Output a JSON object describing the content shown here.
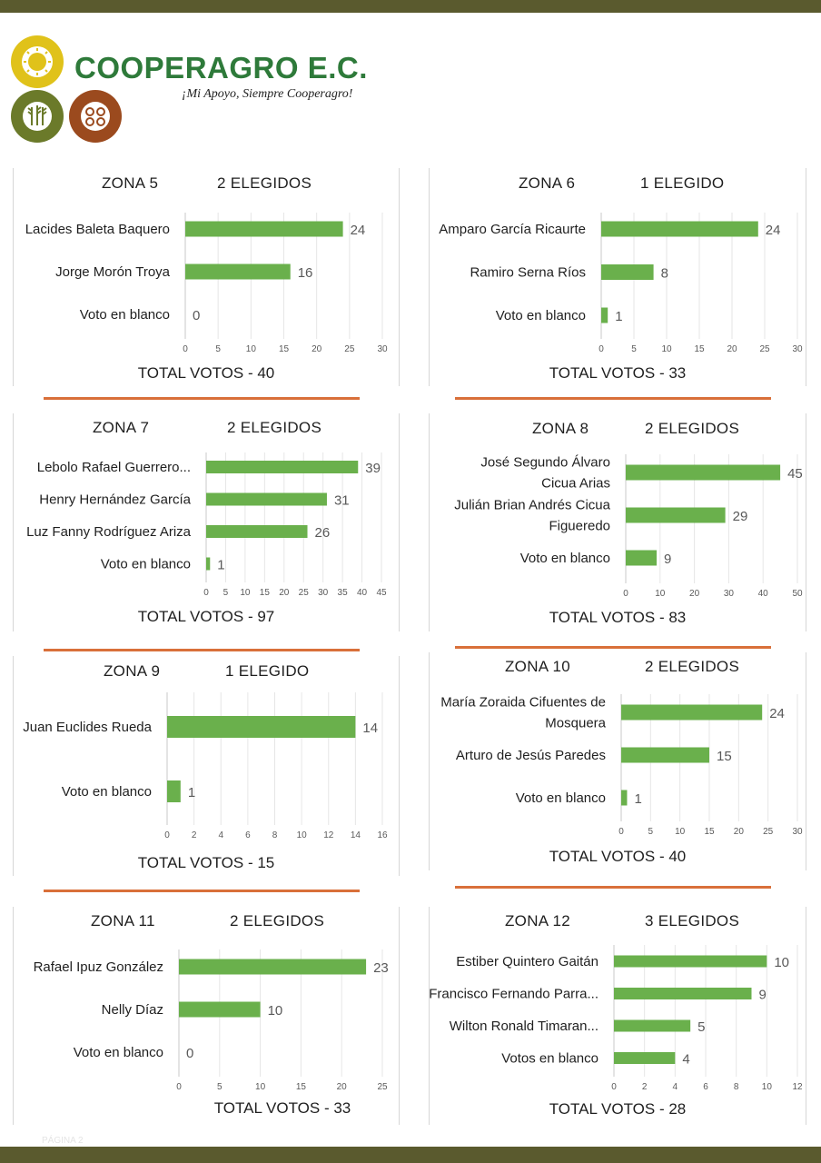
{
  "header": {
    "brand": "COOPERAGRO E.C.",
    "slogan": "¡Mi Apoyo, Siempre Cooperagro!",
    "colors": {
      "band": "#5a5a2e",
      "brand_green": "#2e7a3a",
      "logo_yellow": "#e0c21a",
      "logo_olive": "#6b7a2a",
      "logo_brown": "#9b4a1e",
      "bar_green": "#6ab04c",
      "divider_orange": "#d9703a"
    }
  },
  "zones": [
    {
      "zona": "ZONA 5",
      "elegidos": "2 ELEGIDOS",
      "total": "TOTAL VOTOS - 40"
    },
    {
      "zona": "ZONA 6",
      "elegidos": "1 ELEGIDO",
      "total": "TOTAL VOTOS - 33"
    },
    {
      "zona": "ZONA 7",
      "elegidos": "2 ELEGIDOS",
      "total": "TOTAL VOTOS - 97"
    },
    {
      "zona": "ZONA 8",
      "elegidos": "2 ELEGIDOS",
      "total": "TOTAL VOTOS - 83"
    },
    {
      "zona": "ZONA 9",
      "elegidos": "1 ELEGIDO",
      "total": "TOTAL VOTOS - 15"
    },
    {
      "zona": "ZONA 10",
      "elegidos": "2 ELEGIDOS",
      "total": "TOTAL VOTOS - 40"
    },
    {
      "zona": "ZONA 11",
      "elegidos": "2 ELEGIDOS",
      "total": "TOTAL VOTOS - 33"
    },
    {
      "zona": "ZONA 12",
      "elegidos": "3 ELEGIDOS",
      "total": "TOTAL VOTOS - 28"
    }
  ],
  "chart_data": [
    {
      "type": "bar",
      "orientation": "horizontal",
      "categories": [
        "Lacides Baleta Baquero",
        "Jorge Morón Troya",
        "Voto en blanco"
      ],
      "values": [
        24,
        16,
        0
      ],
      "xlim": [
        0,
        30
      ],
      "xticks": [
        0,
        5,
        10,
        15,
        20,
        25,
        30
      ],
      "grid": true
    },
    {
      "type": "bar",
      "orientation": "horizontal",
      "categories": [
        "Amparo García Ricaurte",
        "Ramiro Serna Ríos",
        "Voto en blanco"
      ],
      "values": [
        24,
        8,
        1
      ],
      "xlim": [
        0,
        30
      ],
      "xticks": [
        0,
        5,
        10,
        15,
        20,
        25,
        30
      ],
      "grid": true
    },
    {
      "type": "bar",
      "orientation": "horizontal",
      "categories": [
        "Lebolo Rafael Guerrero...",
        "Henry Hernández García",
        "Luz Fanny Rodríguez Ariza",
        "Voto en blanco"
      ],
      "values": [
        39,
        31,
        26,
        1
      ],
      "xlim": [
        0,
        45
      ],
      "xticks": [
        0,
        5,
        10,
        15,
        20,
        25,
        30,
        35,
        40,
        45
      ],
      "grid": true
    },
    {
      "type": "bar",
      "orientation": "horizontal",
      "categories": [
        [
          "José Segundo Álvaro",
          "Cicua Arias"
        ],
        [
          "Julián Brian Andrés Cicua",
          "Figueredo"
        ],
        "Voto en blanco"
      ],
      "values": [
        45,
        29,
        9
      ],
      "xlim": [
        0,
        50
      ],
      "xticks": [
        0,
        10,
        20,
        30,
        40,
        50
      ],
      "grid": true
    },
    {
      "type": "bar",
      "orientation": "horizontal",
      "categories": [
        "Juan Euclides Rueda",
        "Voto en blanco"
      ],
      "values": [
        14,
        1
      ],
      "xlim": [
        0,
        16
      ],
      "xticks": [
        0,
        2,
        4,
        6,
        8,
        10,
        12,
        14,
        16
      ],
      "grid": true
    },
    {
      "type": "bar",
      "orientation": "horizontal",
      "categories": [
        [
          "María Zoraida Cifuentes de",
          "Mosquera"
        ],
        "Arturo de Jesús Paredes",
        "Voto en blanco"
      ],
      "values": [
        24,
        15,
        1
      ],
      "xlim": [
        0,
        30
      ],
      "xticks": [
        0,
        5,
        10,
        15,
        20,
        25,
        30
      ],
      "grid": true
    },
    {
      "type": "bar",
      "orientation": "horizontal",
      "categories": [
        "Rafael Ipuz González",
        "Nelly Díaz",
        "Voto en blanco"
      ],
      "values": [
        23,
        10,
        0
      ],
      "xlim": [
        0,
        25
      ],
      "xticks": [
        0,
        5,
        10,
        15,
        20,
        25
      ],
      "grid": true
    },
    {
      "type": "bar",
      "orientation": "horizontal",
      "categories": [
        "Estiber Quintero Gaitán",
        "Francisco Fernando Parra...",
        "Wilton Ronald Timaran...",
        "Votos en blanco"
      ],
      "values": [
        10,
        9,
        5,
        4
      ],
      "xlim": [
        0,
        12
      ],
      "xticks": [
        0,
        2,
        4,
        6,
        8,
        10,
        12
      ],
      "grid": true
    }
  ],
  "page_label": "PÁGINA 2"
}
